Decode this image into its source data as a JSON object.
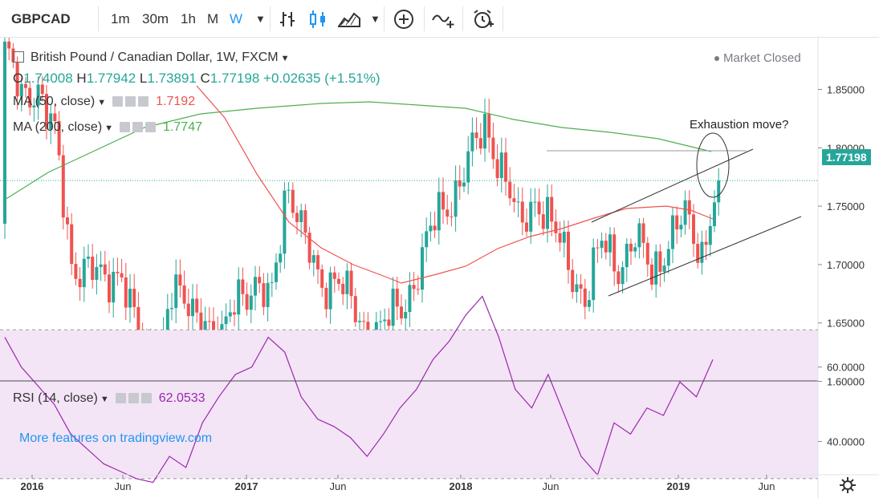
{
  "toolbar": {
    "symbol": "GBPCAD",
    "intervals": [
      "1m",
      "30m",
      "1h",
      "M",
      "W"
    ],
    "active_interval": "W",
    "icons": [
      "indicators-icon",
      "candles-icon",
      "area-icon",
      "chevron-down-icon",
      "plus-circle-icon",
      "compare-icon",
      "alarm-icon"
    ]
  },
  "header": {
    "title": "British Pound / Canadian Dollar, 1W, FXCM",
    "market_status": "Market Closed",
    "ohlc": {
      "o_label": "O",
      "o": "1.74008",
      "h_label": "H",
      "h": "1.77942",
      "l_label": "L",
      "l": "1.73891",
      "c_label": "C",
      "c": "1.77198",
      "change": "+0.02635 (+1.51%)"
    },
    "ma50": {
      "label": "MA (50, close)",
      "value": "1.7192",
      "color": "#ef5350"
    },
    "ma200": {
      "label": "MA (200, close)",
      "value": "1.7747",
      "color": "#4caf50"
    }
  },
  "annotation": "Exhaustion move?",
  "current_price_label": "1.77198",
  "rsi": {
    "label": "RSI (14, close)",
    "value": "62.0533",
    "color": "#9c27b0"
  },
  "watermark_link": "More features on tradingview.com",
  "colors": {
    "up": "#26a69a",
    "down": "#ef5350",
    "rsi_band": "#f3e5f5"
  },
  "chart_data": [
    {
      "type": "candlestick",
      "title": "British Pound / Canadian Dollar, 1W, FXCM",
      "yticks": [
        "1.85000",
        "1.80000",
        "1.75000",
        "1.70000",
        "1.65000",
        "1.60000"
      ],
      "ylim": [
        1.585,
        1.87
      ],
      "xticks": [
        "2016",
        "Jun",
        "2017",
        "Jun",
        "2018",
        "Jun",
        "2019",
        "Jun"
      ],
      "series": [
        {
          "name": "GBPCAD",
          "waypoints": [
            [
              1.735,
              1.885
            ],
            [
              1.82,
              1.84
            ],
            [
              1.8,
              1.855
            ],
            [
              1.84,
              1.81
            ],
            [
              1.76,
              1.7
            ],
            [
              1.735,
              1.7
            ],
            [
              1.74,
              1.68
            ],
            [
              1.69,
              1.7
            ],
            [
              1.72,
              1.64
            ],
            [
              1.62,
              1.6
            ],
            [
              1.65,
              1.68
            ],
            [
              1.63,
              1.66
            ],
            [
              1.685,
              1.66
            ],
            [
              1.63,
              1.625
            ],
            [
              1.625,
              1.68
            ],
            [
              1.71,
              1.68
            ],
            [
              1.675,
              1.665
            ],
            [
              1.67,
              1.775
            ],
            [
              1.76,
              1.72
            ],
            [
              1.7,
              1.685
            ],
            [
              1.68,
              1.69
            ],
            [
              1.655,
              1.66
            ],
            [
              1.63,
              1.64
            ],
            [
              1.61,
              1.65
            ],
            [
              1.67,
              1.665
            ],
            [
              1.68,
              1.7
            ],
            [
              1.72,
              1.74
            ],
            [
              1.735,
              1.76
            ],
            [
              1.78,
              1.79
            ],
            [
              1.83,
              1.82
            ],
            [
              1.81,
              1.78
            ],
            [
              1.75,
              1.73
            ],
            [
              1.74,
              1.76
            ],
            [
              1.745,
              1.73
            ],
            [
              1.715,
              1.7
            ],
            [
              1.675,
              1.67
            ],
            [
              1.685,
              1.72
            ],
            [
              1.69,
              1.7
            ],
            [
              1.71,
              1.72
            ],
            [
              1.69,
              1.695
            ],
            [
              1.7,
              1.72
            ],
            [
              1.73,
              1.74
            ],
            [
              1.71,
              1.712
            ],
            [
              1.705,
              1.772
            ]
          ]
        },
        {
          "name": "MA (50, close)",
          "value": 1.7192
        },
        {
          "name": "MA (200, close)",
          "value": 1.7747
        }
      ]
    },
    {
      "type": "line",
      "title": "RSI (14, close)",
      "yticks": [
        "60.0000",
        "40.0000"
      ],
      "ylim": [
        24,
        83
      ],
      "band": [
        30,
        70
      ],
      "series": [
        {
          "name": "RSI (14, close)",
          "values": [
            68,
            60,
            55,
            50,
            42,
            38,
            34,
            32,
            30,
            29,
            36,
            33,
            45,
            52,
            58,
            60,
            68,
            64,
            52,
            46,
            44,
            41,
            36,
            42,
            49,
            54,
            62,
            67,
            74,
            79,
            68,
            54,
            49,
            58,
            47,
            36,
            31,
            45,
            42,
            49,
            47,
            56,
            52,
            62
          ]
        }
      ]
    }
  ]
}
